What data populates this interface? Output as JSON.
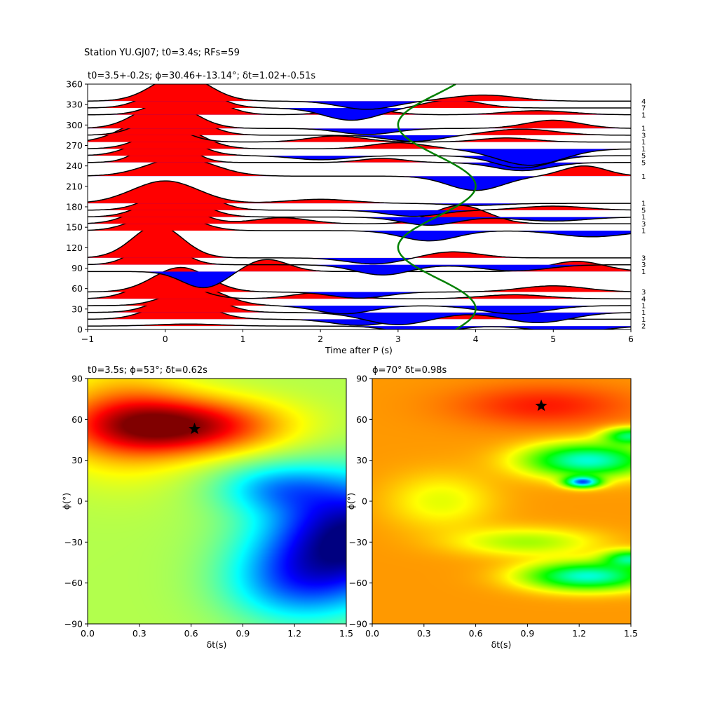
{
  "figure": {
    "suptitle": "Station YU.GJ07; t0=3.4s; RFs=59"
  },
  "chart_data": [
    {
      "type": "line",
      "id": "rf-panel",
      "title": "t0=3.5+-0.2s; ϕ=30.46+-13.14°; δt=1.02+-0.51s",
      "xlabel": "Time after P (s)",
      "ylabel": "",
      "xlim": [
        -1,
        6
      ],
      "ylim": [
        0,
        360
      ],
      "xticks": [
        -1,
        0,
        1,
        2,
        3,
        4,
        5,
        6
      ],
      "yticks": [
        0,
        30,
        60,
        90,
        120,
        150,
        180,
        210,
        240,
        270,
        300,
        330,
        360
      ],
      "positive_fill": "#ff0000",
      "negative_fill": "#0000ff",
      "trace_color": "#000000",
      "curve_color": "#008000",
      "curve": {
        "t0": 3.5,
        "amplitude": 0.5,
        "period_deg": 180,
        "phase_deg": 30.46
      },
      "bins": [
        {
          "baz": 5,
          "count": "2",
          "a1": 0.1,
          "t1": 0.3,
          "w1": 0.6,
          "a2": -0.4,
          "t2": 3.3,
          "w2": 0.5,
          "a3": -0.3,
          "t3": 5.2,
          "w3": 0.6
        },
        {
          "baz": 15,
          "count": "1",
          "a1": 1.0,
          "t1": 0.2,
          "w1": 0.5,
          "a2": -0.3,
          "t2": 2.5,
          "w2": 0.5,
          "a3": 0.3,
          "t3": 4.0,
          "w3": 0.6
        },
        {
          "baz": 25,
          "count": "1",
          "a1": 1.1,
          "t1": 0.3,
          "w1": 0.5,
          "a2": -0.6,
          "t2": 3.0,
          "w2": 0.6,
          "a3": -0.5,
          "t3": 4.8,
          "w3": 0.6
        },
        {
          "baz": 35,
          "count": "1",
          "a1": 0.9,
          "t1": 0.4,
          "w1": 0.5,
          "a2": -0.4,
          "t2": 2.3,
          "w2": 0.5,
          "a3": -0.4,
          "t3": 4.5,
          "w3": 0.6
        },
        {
          "baz": 45,
          "count": "4",
          "a1": 1.0,
          "t1": 0.0,
          "w1": 0.5,
          "a2": 0.3,
          "t2": 2.0,
          "w2": 0.5,
          "a3": 0.2,
          "t3": 4.5,
          "w3": 0.6
        },
        {
          "baz": 55,
          "count": "3",
          "a1": 1.2,
          "t1": 0.2,
          "w1": 0.5,
          "a2": -0.3,
          "t2": 2.5,
          "w2": 0.5,
          "a3": 0.3,
          "t3": 5.0,
          "w3": 0.6
        },
        {
          "baz": 85,
          "count": "1",
          "a1": -0.8,
          "t1": 0.5,
          "w1": 0.4,
          "a2": 0.6,
          "t2": 1.3,
          "w2": 0.4,
          "a3": 0.5,
          "t3": 5.3,
          "w3": 0.5
        },
        {
          "baz": 95,
          "count": "3",
          "a1": 1.2,
          "t1": -0.1,
          "w1": 0.4,
          "a2": -0.5,
          "t2": 2.8,
          "w2": 0.5,
          "a3": -0.3,
          "t3": 4.5,
          "w3": 0.6
        },
        {
          "baz": 105,
          "count": "3",
          "a1": 1.6,
          "t1": -0.1,
          "w1": 0.45,
          "a2": -0.3,
          "t2": 2.7,
          "w2": 0.5,
          "a3": 0.3,
          "t3": 3.7,
          "w3": 0.5
        },
        {
          "baz": 145,
          "count": "1",
          "a1": 1.0,
          "t1": 0.0,
          "w1": 0.5,
          "a2": -0.5,
          "t2": 3.4,
          "w2": 0.5,
          "a3": -0.3,
          "t3": 5.5,
          "w3": 0.6
        },
        {
          "baz": 155,
          "count": "3",
          "a1": 1.2,
          "t1": 0.0,
          "w1": 0.5,
          "a2": 0.3,
          "t2": 1.5,
          "w2": 0.5,
          "a3": 0.9,
          "t3": 3.8,
          "w3": 0.5
        },
        {
          "baz": 165,
          "count": "1",
          "a1": 1.1,
          "t1": 0.1,
          "w1": 0.5,
          "a2": -0.4,
          "t2": 3.4,
          "w2": 0.5,
          "a3": -0.2,
          "t3": 5.0,
          "w3": 0.6
        },
        {
          "baz": 175,
          "count": "5",
          "a1": 1.2,
          "t1": 0.2,
          "w1": 0.5,
          "a2": -0.3,
          "t2": 3.2,
          "w2": 0.5,
          "a3": 0.2,
          "t3": 5.0,
          "w3": 0.6
        },
        {
          "baz": 185,
          "count": "1",
          "a1": 1.1,
          "t1": 0.0,
          "w1": 0.6,
          "a2": 0.2,
          "t2": 2.0,
          "w2": 0.6,
          "a3": -0.1,
          "t3": 4.0,
          "w3": 0.5
        },
        {
          "baz": 225,
          "count": "1",
          "a1": 0.9,
          "t1": 0.2,
          "w1": 0.6,
          "a2": -0.7,
          "t2": 4.0,
          "w2": 0.5,
          "a3": 0.5,
          "t3": 5.4,
          "w3": 0.4
        },
        {
          "baz": 245,
          "count": "5",
          "a1": 1.3,
          "t1": 0.0,
          "w1": 0.4,
          "a2": 0.2,
          "t2": 2.8,
          "w2": 0.4,
          "a3": -0.4,
          "t3": 4.6,
          "w3": 0.5
        },
        {
          "baz": 255,
          "count": "5",
          "a1": 1.1,
          "t1": 0.0,
          "w1": 0.5,
          "a2": -0.2,
          "t2": 2.0,
          "w2": 0.5,
          "a3": -0.6,
          "t3": 4.6,
          "w3": 0.5
        },
        {
          "baz": 265,
          "count": "1",
          "a1": 1.1,
          "t1": 0.1,
          "w1": 0.5,
          "a2": 0.3,
          "t2": 3.0,
          "w2": 0.5,
          "a3": -0.8,
          "t3": 4.7,
          "w3": 0.6
        },
        {
          "baz": 275,
          "count": "1",
          "a1": 1.1,
          "t1": -0.2,
          "w1": 0.5,
          "a2": 0.3,
          "t2": 2.2,
          "w2": 0.5,
          "a3": 0.2,
          "t3": 4.4,
          "w3": 0.5
        },
        {
          "baz": 285,
          "count": "3",
          "a1": 1.2,
          "t1": 0.1,
          "w1": 0.5,
          "a2": -0.3,
          "t2": 3.2,
          "w2": 0.5,
          "a3": 0.3,
          "t3": 4.6,
          "w3": 0.6
        },
        {
          "baz": 295,
          "count": "1",
          "a1": 1.3,
          "t1": 0.0,
          "w1": 0.5,
          "a2": -0.3,
          "t2": 2.6,
          "w2": 0.5,
          "a3": 0.4,
          "t3": 5.0,
          "w3": 0.5
        },
        {
          "baz": 315,
          "count": "1",
          "a1": 1.2,
          "t1": 0.3,
          "w1": 0.5,
          "a2": 0.3,
          "t2": 2.5,
          "w2": 0.5,
          "a3": 0.2,
          "t3": 4.8,
          "w3": 0.6
        },
        {
          "baz": 325,
          "count": "7",
          "a1": 1.4,
          "t1": 0.2,
          "w1": 0.5,
          "a2": -0.6,
          "t2": 2.4,
          "w2": 0.5,
          "a3": 0.4,
          "t3": 3.7,
          "w3": 0.5
        },
        {
          "baz": 335,
          "count": "4",
          "a1": 1.3,
          "t1": 0.2,
          "w1": 0.5,
          "a2": -0.4,
          "t2": 2.6,
          "w2": 0.5,
          "a3": 0.3,
          "t3": 4.1,
          "w3": 0.6
        }
      ]
    },
    {
      "type": "heatmap",
      "id": "grid-left",
      "title": "t0=3.5s; ϕ=53°; δt=0.62s",
      "xlabel": "δt(s)",
      "ylabel": "ϕ(°)",
      "xlim": [
        0.0,
        1.5
      ],
      "ylim": [
        -90,
        90
      ],
      "xticks": [
        "0.0",
        "0.3",
        "0.6",
        "0.9",
        "1.2",
        "1.5"
      ],
      "yticks": [
        -90,
        -60,
        -30,
        0,
        30,
        60,
        90
      ],
      "best": {
        "dt": 0.62,
        "phi": 53
      },
      "marker": "star",
      "colormap": "jet-reversed"
    },
    {
      "type": "heatmap",
      "id": "grid-right",
      "title": "ϕ=70° δt=0.98s",
      "xlabel": "δt(s)",
      "ylabel": "ϕ(°)",
      "xlim": [
        0.0,
        1.5
      ],
      "ylim": [
        -90,
        90
      ],
      "xticks": [
        "0.0",
        "0.3",
        "0.6",
        "0.9",
        "1.2",
        "1.5"
      ],
      "yticks": [
        -90,
        -60,
        -30,
        0,
        30,
        60,
        90
      ],
      "best": {
        "dt": 0.98,
        "phi": 70
      },
      "marker": "star",
      "colormap": "hsv-like"
    }
  ]
}
